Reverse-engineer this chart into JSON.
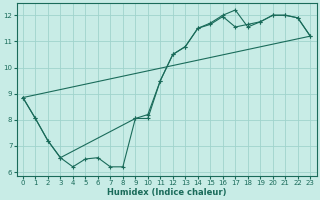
{
  "xlabel": "Humidex (Indice chaleur)",
  "background_color": "#c8ece6",
  "grid_color": "#a0d4cc",
  "line_color": "#1a6b5a",
  "xlim": [
    -0.5,
    23.5
  ],
  "ylim": [
    5.85,
    12.45
  ],
  "xticks": [
    0,
    1,
    2,
    3,
    4,
    5,
    6,
    7,
    8,
    9,
    10,
    11,
    12,
    13,
    14,
    15,
    16,
    17,
    18,
    19,
    20,
    21,
    22,
    23
  ],
  "yticks": [
    6,
    7,
    8,
    9,
    10,
    11,
    12
  ],
  "line1_x": [
    0,
    1,
    2,
    3,
    4,
    5,
    6,
    7,
    8,
    9,
    10,
    11,
    12,
    13,
    14,
    15,
    16,
    17,
    18,
    19,
    20,
    21,
    22,
    23
  ],
  "line1_y": [
    8.85,
    8.05,
    7.2,
    6.55,
    6.2,
    6.5,
    6.55,
    6.2,
    6.2,
    8.05,
    8.05,
    9.5,
    10.5,
    10.8,
    11.5,
    11.7,
    12.0,
    12.2,
    11.55,
    11.75,
    12.0,
    12.0,
    11.9,
    11.2
  ],
  "line2_x": [
    0,
    23
  ],
  "line2_y": [
    8.85,
    11.2
  ],
  "line3_x": [
    0,
    1,
    2,
    3,
    9,
    10,
    11,
    12,
    13,
    14,
    15,
    16,
    17,
    18,
    19,
    20,
    21,
    22,
    23
  ],
  "line3_y": [
    8.85,
    8.05,
    7.2,
    6.55,
    8.05,
    8.2,
    9.5,
    10.5,
    10.8,
    11.5,
    11.65,
    11.95,
    11.55,
    11.65,
    11.75,
    12.0,
    12.0,
    11.9,
    11.2
  ]
}
